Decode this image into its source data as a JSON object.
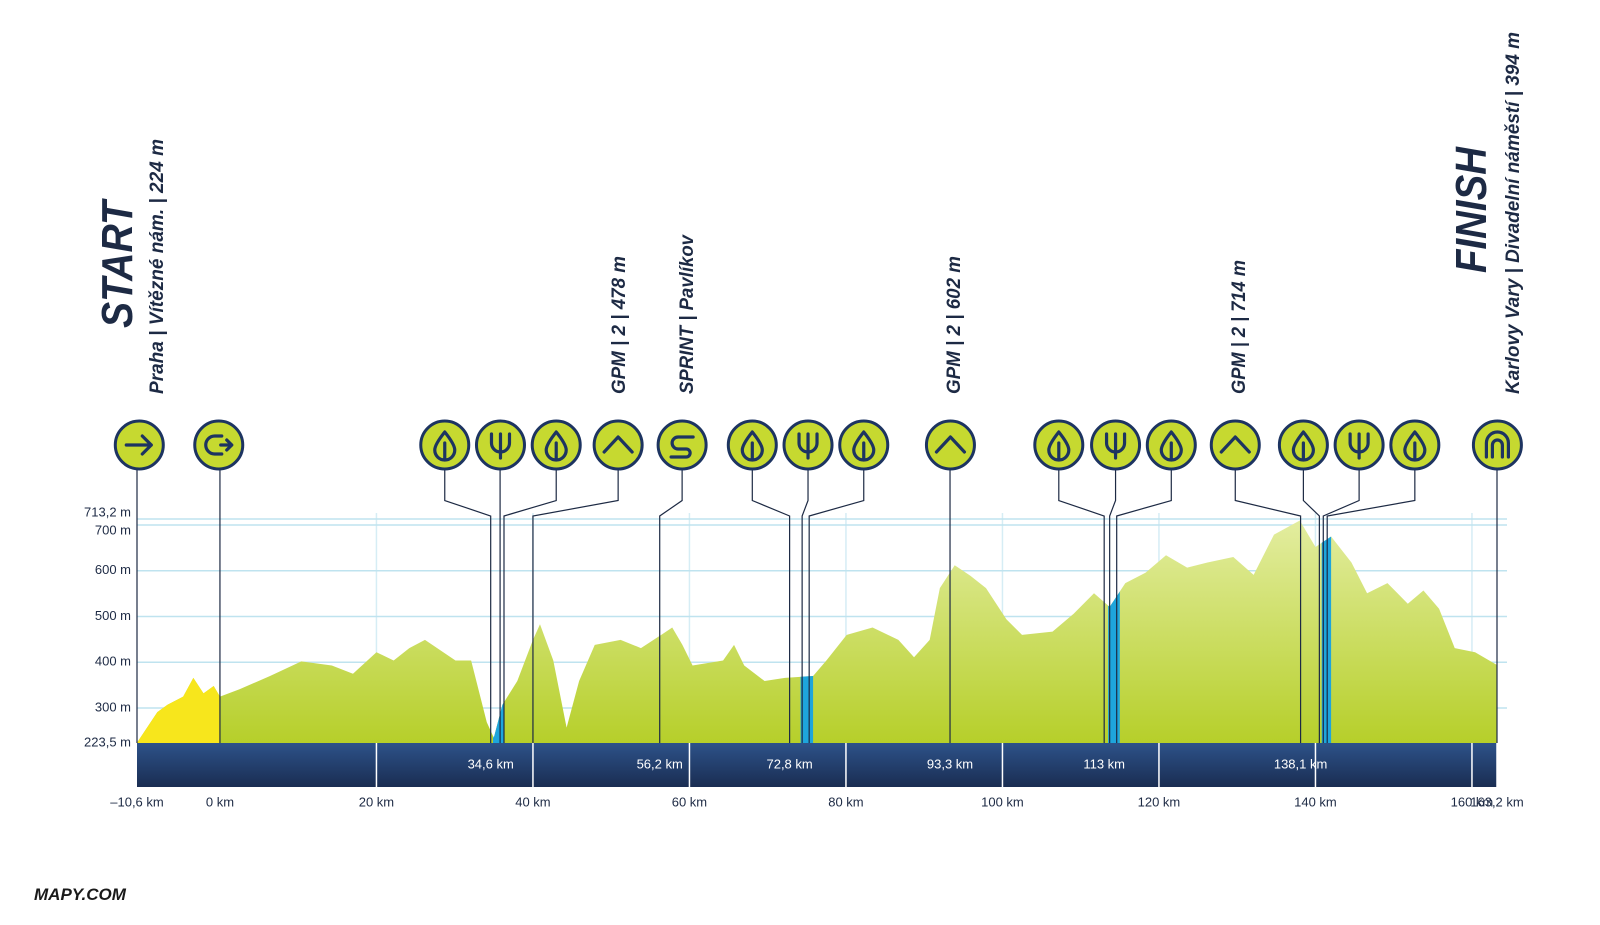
{
  "chart_data": {
    "type": "area",
    "start_title": "START",
    "start_place": "Praha | Vítězné nám. | 224 m",
    "finish_title": "FINISH",
    "finish_place": "Karlovy Vary | Divadelní náměstí | 394 m",
    "points": [
      "GPM | 2 | 478 m",
      "SPRINT | Pavlíkov",
      "GPM | 2 | 602 m",
      "GPM | 2 | 714 m"
    ],
    "brand": "MAPY.COM",
    "x": [
      -10.6,
      -8.0,
      -6.7,
      -4.7,
      -3.4,
      -2.1,
      -0.8,
      0,
      2.5,
      6.4,
      10.4,
      14.3,
      17.0,
      20,
      22.2,
      24.2,
      26.2,
      30.1,
      32.1,
      34.1,
      35.0,
      36.1,
      38.0,
      40,
      40.9,
      42.6,
      44.3,
      45.9,
      47.9,
      51.2,
      53.8,
      56.4,
      57.8,
      59.1,
      60.4,
      64.3,
      65.7,
      67.0,
      69.6,
      72.2,
      75.8,
      77.5,
      80.1,
      83.4,
      86.7,
      88.7,
      90.7,
      92.0,
      93.9,
      95.9,
      97.9,
      100.5,
      102.5,
      106.4,
      109.1,
      111.7,
      113.7,
      115.7,
      118.3,
      120.9,
      123.6,
      126.2,
      129.5,
      132.1,
      134.7,
      138.0,
      140.0,
      142.0,
      144.6,
      146.6,
      149.2,
      151.8,
      153.8,
      155.8,
      157.8,
      160.4,
      163.2
    ],
    "values": [
      224,
      291,
      307,
      325,
      366,
      332,
      348,
      325,
      341,
      370,
      402,
      393,
      375,
      422,
      404,
      431,
      449,
      404,
      404,
      269,
      235,
      307,
      359,
      449,
      483,
      404,
      257,
      359,
      438,
      449,
      431,
      460,
      476,
      438,
      393,
      404,
      438,
      393,
      359,
      366,
      370,
      404,
      460,
      476,
      449,
      411,
      449,
      562,
      612,
      589,
      562,
      494,
      460,
      467,
      506,
      551,
      521,
      573,
      596,
      634,
      607,
      618,
      630,
      591,
      679,
      710,
      652,
      675,
      618,
      551,
      573,
      528,
      557,
      517,
      431,
      422,
      394
    ],
    "color": "#c3d836",
    "neutral": {
      "from": -10.6,
      "to": 0,
      "color": "#f7e61c"
    },
    "climbs": [
      {
        "from": 34.9,
        "to": 36.3
      },
      {
        "from": 74.2,
        "to": 75.8
      },
      {
        "from": 113.5,
        "to": 115.0
      },
      {
        "from": 140.8,
        "to": 142.0
      }
    ],
    "climb_color": "#1ea5dc",
    "markers": [
      -10.6,
      0,
      34.6,
      35.8,
      36.3,
      40,
      56.2,
      72.8,
      74.4,
      75.3,
      93.3,
      113,
      113.7,
      114.6,
      138.1,
      140.5,
      141.0,
      141.5,
      163.2
    ],
    "band_labels": [
      {
        "value": 34.6,
        "label": "34,6 km"
      },
      {
        "value": 56.2,
        "label": "56,2 km"
      },
      {
        "value": 72.8,
        "label": "72,8 km"
      },
      {
        "value": 93.3,
        "label": "93,3 km"
      },
      {
        "value": 113,
        "label": "113 km"
      },
      {
        "value": 138.1,
        "label": "138,1 km"
      }
    ],
    "xlim": [
      -10.6,
      163.2
    ],
    "xticks": [
      {
        "value": -10.6,
        "label": "–10,6 km"
      },
      {
        "value": 0,
        "label": "0 km"
      },
      {
        "value": 20,
        "label": "20 km"
      },
      {
        "value": 40,
        "label": "40 km"
      },
      {
        "value": 60,
        "label": "60 km"
      },
      {
        "value": 80,
        "label": "80 km"
      },
      {
        "value": 100,
        "label": "100 km"
      },
      {
        "value": 120,
        "label": "120 km"
      },
      {
        "value": 140,
        "label": "140 km"
      },
      {
        "value": 160,
        "label": "160 km"
      },
      {
        "value": 163.2,
        "label": "163,2 km"
      }
    ],
    "ylim": [
      223.5,
      713.2
    ],
    "yticks": [
      {
        "value": 223.5,
        "label": "223,5 m"
      },
      {
        "value": 300,
        "label": "300 m"
      },
      {
        "value": 400,
        "label": "400 m"
      },
      {
        "value": 500,
        "label": "500 m"
      },
      {
        "value": 600,
        "label": "600 m"
      },
      {
        "value": 700,
        "label": "700 m"
      },
      {
        "value": 713.2,
        "label": "713,2 m"
      }
    ],
    "grid": true
  }
}
